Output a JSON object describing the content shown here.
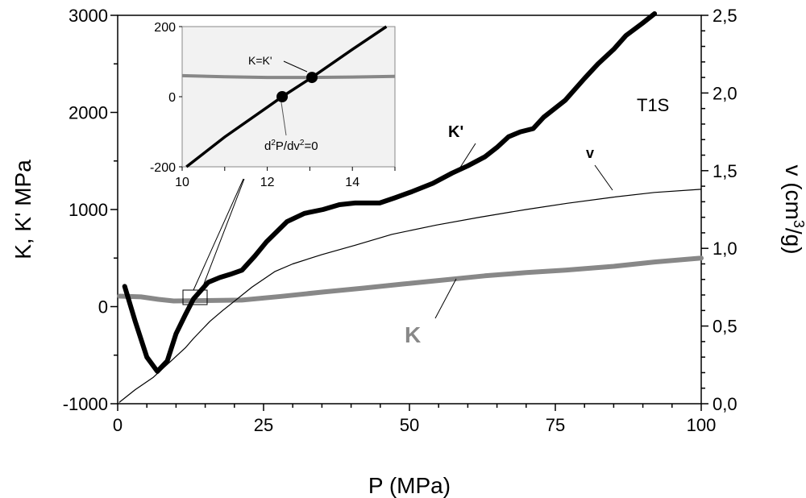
{
  "chart_data": {
    "type": "line",
    "title": "T1S",
    "xlabel": "P (MPa)",
    "ylabel": "K, K' MPa",
    "y2label_pre": "v (cm",
    "y2label_sup": "3",
    "y2label_post": "/g)",
    "xlim": [
      0,
      100
    ],
    "ylim": [
      -1000,
      3000
    ],
    "y2lim": [
      0,
      2.5
    ],
    "xticks": [
      "0",
      "25",
      "50",
      "75",
      "100"
    ],
    "yticks": [
      "-1000",
      "0",
      "1000",
      "2000",
      "3000"
    ],
    "y2ticks": [
      "0,0",
      "0,5",
      "1,0",
      "1,5",
      "2,0",
      "2,5"
    ],
    "series": [
      {
        "name": "K'",
        "axis": "left",
        "color": "#000000",
        "x": [
          1.2,
          3,
          5,
          6.8,
          8.5,
          10,
          11.6,
          13,
          15.5,
          17.5,
          19.3,
          21.3,
          23.5,
          25.5,
          29,
          32,
          35.2,
          38,
          40.7,
          44.9,
          47.5,
          50.4,
          54,
          57.3,
          60,
          62.9,
          65,
          67,
          69,
          71.2,
          73,
          76.7,
          80,
          82.3,
          85,
          87.1,
          89.9,
          92
        ],
        "y": [
          208,
          -150,
          -520,
          -667,
          -560,
          -280,
          -83,
          80,
          250,
          300,
          333,
          375,
          520,
          667,
          875,
          960,
          1000,
          1050,
          1067,
          1067,
          1120,
          1183,
          1270,
          1375,
          1450,
          1542,
          1640,
          1750,
          1800,
          1833,
          1950,
          2125,
          2350,
          2500,
          2650,
          2792,
          2917,
          3017
        ]
      },
      {
        "name": "K",
        "axis": "left",
        "color": "#888888",
        "x": [
          0.3,
          4,
          7,
          9.6,
          15,
          21.3,
          28,
          35.2,
          42,
          49,
          56,
          62.9,
          70,
          76.7,
          85,
          92,
          100
        ],
        "y": [
          108,
          100,
          75,
          58,
          62,
          67,
          105,
          150,
          190,
          233,
          275,
          317,
          350,
          375,
          415,
          460,
          500
        ]
      },
      {
        "name": "v",
        "axis": "right",
        "color": "#000000",
        "x": [
          0.3,
          3,
          6.1,
          9,
          11.6,
          13,
          15.8,
          18,
          20,
          23,
          26.9,
          30,
          35,
          40.7,
          47,
          54.6,
          62,
          70,
          77,
          85,
          92,
          100
        ],
        "y": [
          0.01,
          0.09,
          0.17,
          0.27,
          0.36,
          0.42,
          0.53,
          0.6,
          0.66,
          0.75,
          0.85,
          0.9,
          0.96,
          1.02,
          1.09,
          1.15,
          1.2,
          1.25,
          1.29,
          1.33,
          1.36,
          1.38
        ]
      }
    ],
    "labels": {
      "kprime": "K'",
      "k": "K",
      "v": "v"
    },
    "inset": {
      "xlim": [
        10,
        15
      ],
      "ylim": [
        -200,
        200
      ],
      "xticks": [
        "10",
        "12",
        "14"
      ],
      "yticks": [
        "-200",
        "0",
        "200"
      ],
      "kprime": {
        "x": [
          10.1,
          11,
          12,
          12.35,
          13.05,
          14,
          14.8
        ],
        "y": [
          -200,
          -115,
          -30,
          0,
          55,
          135,
          200
        ]
      },
      "k": {
        "x": [
          10,
          11,
          12,
          13,
          14,
          15
        ],
        "y": [
          60,
          57,
          55,
          55,
          56,
          58
        ]
      },
      "points": [
        {
          "x": 12.35,
          "y": 0
        },
        {
          "x": 13.05,
          "y": 55
        }
      ],
      "annot1": "K=K'",
      "annot2_pre": "d",
      "annot2_sup1": "2",
      "annot2_mid": "P/dv",
      "annot2_sup2": "2",
      "annot2_post": "=0"
    }
  }
}
